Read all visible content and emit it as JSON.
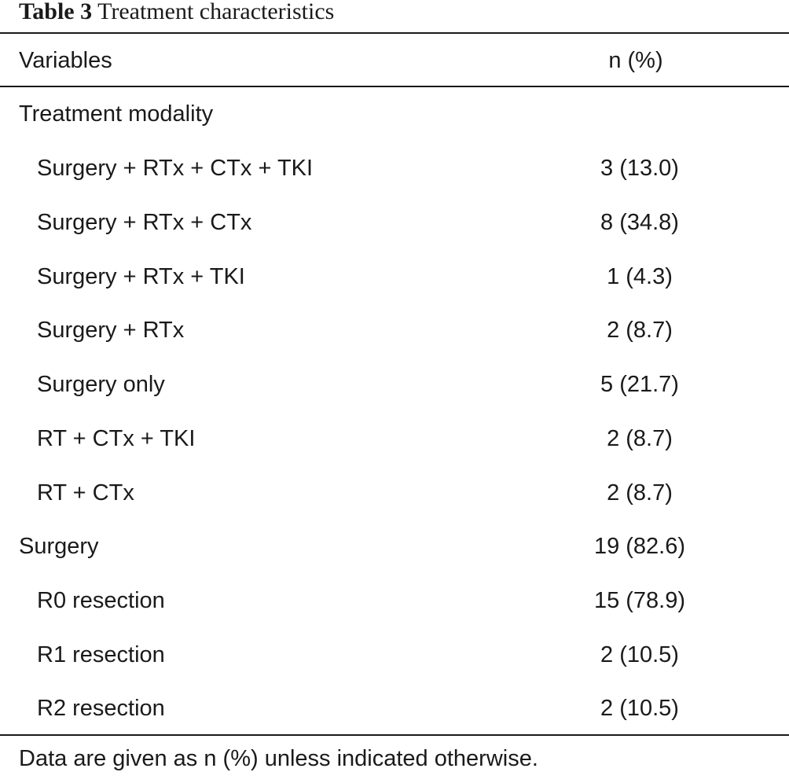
{
  "caption": {
    "label": "Table 3",
    "title": "Treatment characteristics"
  },
  "table": {
    "headers": {
      "variables": "Variables",
      "value": "n (%)"
    },
    "rows": [
      {
        "variable": "Treatment modality",
        "value": ""
      },
      {
        "variable": "Surgery + RTx + CTx + TKI",
        "value": "3 (13.0)"
      },
      {
        "variable": "Surgery + RTx + CTx",
        "value": "8 (34.8)"
      },
      {
        "variable": "Surgery + RTx + TKI",
        "value": "1 (4.3)"
      },
      {
        "variable": "Surgery + RTx",
        "value": "2 (8.7)"
      },
      {
        "variable": "Surgery only",
        "value": "5 (21.7)"
      },
      {
        "variable": "RT + CTx + TKI",
        "value": "2 (8.7)"
      },
      {
        "variable": "RT + CTx",
        "value": "2 (8.7)"
      },
      {
        "variable": "Surgery",
        "value": "19 (82.6)"
      },
      {
        "variable": "R0 resection",
        "value": "15 (78.9)"
      },
      {
        "variable": "R1 resection",
        "value": "2 (10.5)"
      },
      {
        "variable": "R2 resection",
        "value": "2 (10.5)"
      }
    ]
  },
  "footnote": "Data are given as n (%) unless indicated otherwise."
}
